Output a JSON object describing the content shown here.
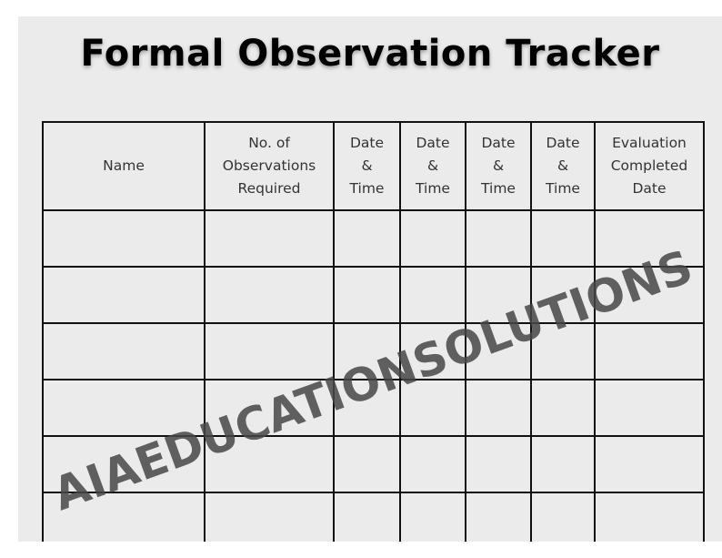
{
  "title": "Formal Observation Tracker",
  "table": {
    "headers": [
      "Name",
      "No. of Observations Required",
      "Date & Time",
      "Date & Time",
      "Date & Time",
      "Date & Time",
      "Evaluation Completed Date"
    ],
    "rows": [
      [
        "",
        "",
        "",
        "",
        "",
        "",
        ""
      ],
      [
        "",
        "",
        "",
        "",
        "",
        "",
        ""
      ],
      [
        "",
        "",
        "",
        "",
        "",
        "",
        ""
      ],
      [
        "",
        "",
        "",
        "",
        "",
        "",
        ""
      ],
      [
        "",
        "",
        "",
        "",
        "",
        "",
        ""
      ],
      [
        "",
        "",
        "",
        "",
        "",
        "",
        ""
      ]
    ]
  },
  "watermark": "AIAEDUCATIONSOLUTIONS"
}
